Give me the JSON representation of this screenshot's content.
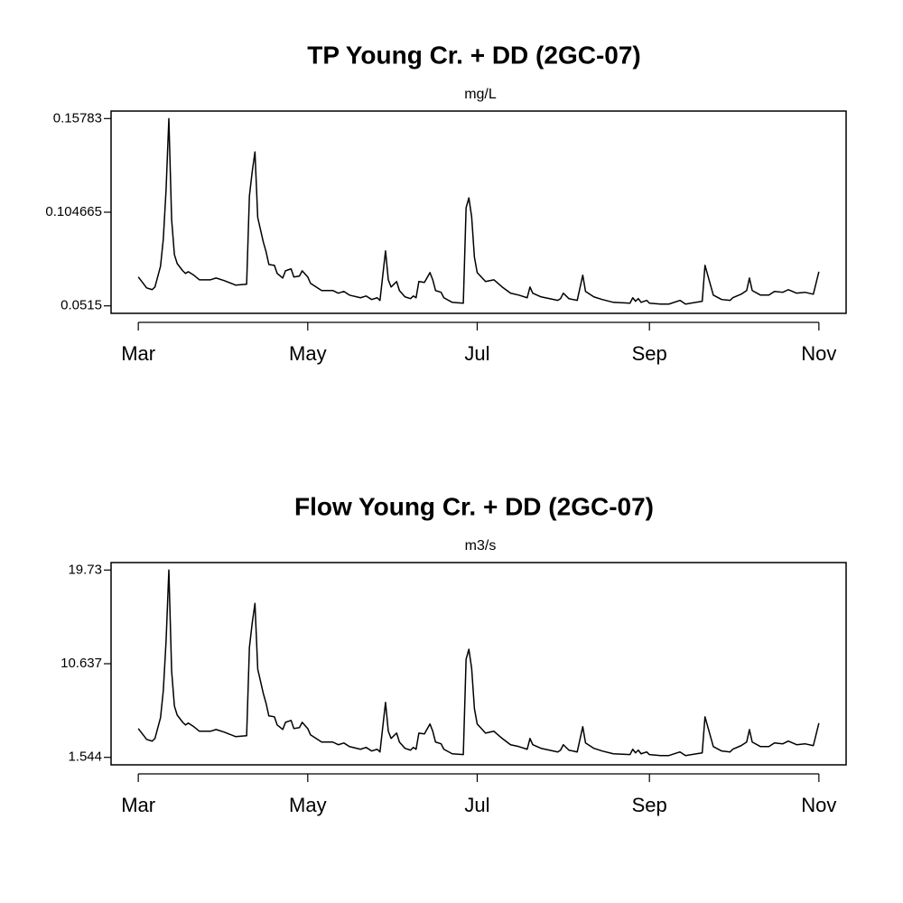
{
  "chart_data": [
    {
      "type": "line",
      "title": "TP Young Cr. + DD (2GC-07)",
      "subtitle": "mg/L",
      "x": [
        0,
        3,
        5,
        6,
        8,
        9,
        10,
        11,
        12,
        13,
        14,
        16,
        17,
        18,
        20,
        22,
        26,
        28,
        31,
        35,
        39,
        40,
        41,
        42,
        43,
        45,
        46,
        47,
        49,
        50,
        52,
        53,
        55,
        56,
        58,
        59,
        61,
        62,
        66,
        70,
        72,
        74,
        76,
        80,
        82,
        84,
        86,
        87,
        89,
        90,
        91,
        93,
        94,
        96,
        98,
        99,
        100,
        101,
        103,
        105,
        106,
        107,
        109,
        110,
        113,
        117,
        118,
        119,
        120,
        121,
        122,
        125,
        128,
        131,
        134,
        137,
        140,
        141,
        142,
        145,
        151,
        152,
        153,
        155,
        158,
        160,
        161,
        164,
        167,
        171,
        177,
        178,
        179,
        180,
        181,
        183,
        184,
        188,
        191,
        195,
        197,
        203,
        204,
        205,
        207,
        210,
        213,
        214,
        217,
        219,
        220,
        221,
        224,
        227,
        229,
        232,
        234,
        237,
        240,
        243,
        245
      ],
      "values": [
        0.0679,
        0.0617,
        0.0607,
        0.0622,
        0.074,
        0.0893,
        0.1174,
        0.1578,
        0.1006,
        0.0806,
        0.0755,
        0.0714,
        0.0699,
        0.0709,
        0.0689,
        0.0663,
        0.0663,
        0.0673,
        0.0658,
        0.0633,
        0.0638,
        0.1138,
        0.1276,
        0.1389,
        0.1016,
        0.0878,
        0.0822,
        0.075,
        0.0745,
        0.0699,
        0.0673,
        0.0714,
        0.0725,
        0.0679,
        0.0684,
        0.0714,
        0.0679,
        0.0643,
        0.0602,
        0.0602,
        0.0587,
        0.0597,
        0.0576,
        0.0561,
        0.0571,
        0.0551,
        0.0561,
        0.0546,
        0.0827,
        0.0663,
        0.0622,
        0.0653,
        0.0602,
        0.0566,
        0.0556,
        0.0571,
        0.0561,
        0.0653,
        0.0648,
        0.0704,
        0.0663,
        0.0602,
        0.0592,
        0.0561,
        0.0535,
        0.053,
        0.1072,
        0.1128,
        0.1021,
        0.0791,
        0.0704,
        0.0653,
        0.0663,
        0.0622,
        0.0587,
        0.0576,
        0.0561,
        0.0622,
        0.0587,
        0.0566,
        0.0546,
        0.0556,
        0.0587,
        0.0556,
        0.0546,
        0.0689,
        0.0597,
        0.0566,
        0.0551,
        0.0535,
        0.053,
        0.0561,
        0.0541,
        0.0556,
        0.0535,
        0.0546,
        0.053,
        0.0525,
        0.0525,
        0.0546,
        0.0525,
        0.0541,
        0.0745,
        0.0689,
        0.0576,
        0.0551,
        0.0546,
        0.0561,
        0.0581,
        0.0602,
        0.0673,
        0.0602,
        0.0576,
        0.0576,
        0.0597,
        0.0592,
        0.0607,
        0.0587,
        0.0592,
        0.0581,
        0.0709
      ],
      "color": "#000000",
      "xlim": [
        -9.8,
        254.8
      ],
      "xticks": [
        {
          "value": 0,
          "label": "Mar"
        },
        {
          "value": 61,
          "label": "May"
        },
        {
          "value": 122,
          "label": "Jul"
        },
        {
          "value": 184,
          "label": "Sep"
        },
        {
          "value": 245,
          "label": "Nov"
        }
      ],
      "ylim": [
        0.04725,
        0.16208
      ],
      "yticks": [
        0.0515,
        0.104665,
        0.15783
      ]
    },
    {
      "type": "line",
      "title": "Flow Young Cr. + DD (2GC-07)",
      "subtitle": "m3/s",
      "x": [
        0,
        3,
        5,
        6,
        8,
        9,
        10,
        11,
        12,
        13,
        14,
        16,
        17,
        18,
        20,
        22,
        26,
        28,
        31,
        35,
        39,
        40,
        41,
        42,
        43,
        45,
        46,
        47,
        49,
        50,
        52,
        53,
        55,
        56,
        58,
        59,
        61,
        62,
        66,
        70,
        72,
        74,
        76,
        80,
        82,
        84,
        86,
        87,
        89,
        90,
        91,
        93,
        94,
        96,
        98,
        99,
        100,
        101,
        103,
        105,
        106,
        107,
        109,
        110,
        113,
        117,
        118,
        119,
        120,
        121,
        122,
        125,
        128,
        131,
        134,
        137,
        140,
        141,
        142,
        145,
        151,
        152,
        153,
        155,
        158,
        160,
        161,
        164,
        167,
        171,
        177,
        178,
        179,
        180,
        181,
        183,
        184,
        188,
        191,
        195,
        197,
        203,
        204,
        205,
        207,
        210,
        213,
        214,
        217,
        219,
        220,
        221,
        224,
        227,
        229,
        232,
        234,
        237,
        240,
        243,
        245
      ],
      "values": [
        4.34,
        3.29,
        3.12,
        3.38,
        5.39,
        8.01,
        12.82,
        19.73,
        9.94,
        6.53,
        5.65,
        4.95,
        4.69,
        4.87,
        4.52,
        4.08,
        4.08,
        4.25,
        3.99,
        3.56,
        3.64,
        12.21,
        14.57,
        16.49,
        10.11,
        7.75,
        6.79,
        5.57,
        5.48,
        4.69,
        4.25,
        4.95,
        5.13,
        4.34,
        4.43,
        4.95,
        4.34,
        3.73,
        3.03,
        3.03,
        2.77,
        2.94,
        2.59,
        2.33,
        2.51,
        2.16,
        2.33,
        2.07,
        6.88,
        4.08,
        3.38,
        3.9,
        3.03,
        2.42,
        2.24,
        2.51,
        2.33,
        3.9,
        3.82,
        4.78,
        4.08,
        3.03,
        2.86,
        2.33,
        1.89,
        1.81,
        11.07,
        12.04,
        10.2,
        6.27,
        4.78,
        3.9,
        4.08,
        3.38,
        2.77,
        2.59,
        2.33,
        3.38,
        2.77,
        2.42,
        2.07,
        2.24,
        2.77,
        2.24,
        2.07,
        4.52,
        2.94,
        2.42,
        2.16,
        1.89,
        1.81,
        2.33,
        1.98,
        2.24,
        1.89,
        2.07,
        1.81,
        1.72,
        1.72,
        2.07,
        1.72,
        1.98,
        5.48,
        4.52,
        2.59,
        2.16,
        2.07,
        2.33,
        2.68,
        3.03,
        4.25,
        3.03,
        2.59,
        2.59,
        2.94,
        2.86,
        3.12,
        2.77,
        2.86,
        2.68,
        4.87
      ],
      "color": "#000000",
      "xlim": [
        -9.8,
        254.8
      ],
      "xticks": [
        {
          "value": 0,
          "label": "Mar"
        },
        {
          "value": 61,
          "label": "May"
        },
        {
          "value": 122,
          "label": "Jul"
        },
        {
          "value": 184,
          "label": "Sep"
        },
        {
          "value": 245,
          "label": "Nov"
        }
      ],
      "ylim": [
        0.817,
        20.457
      ],
      "yticks": [
        1.544,
        10.637,
        19.73
      ]
    }
  ]
}
